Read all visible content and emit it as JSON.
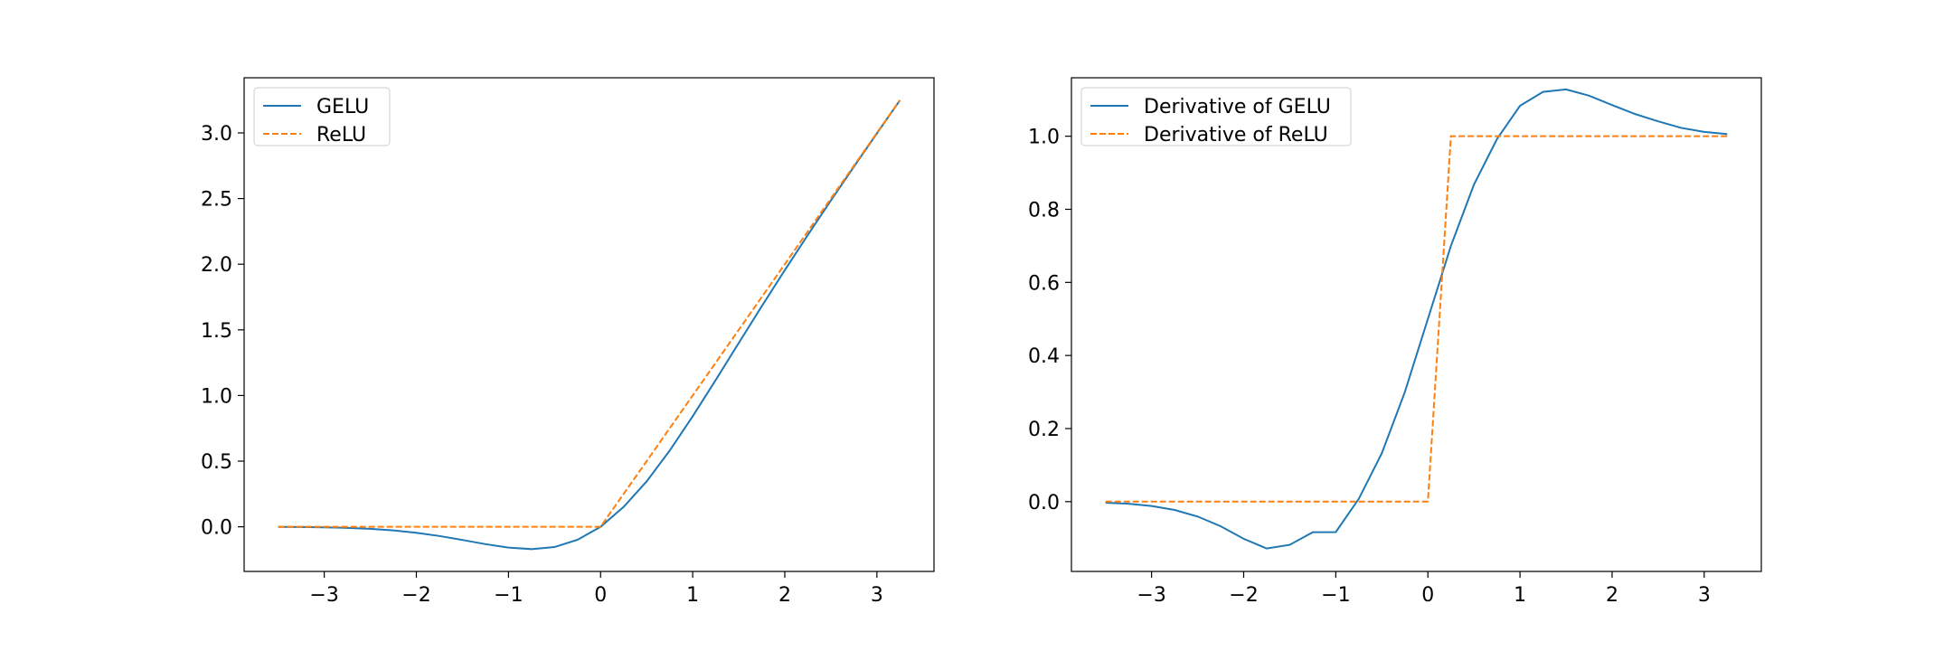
{
  "chart_data": [
    {
      "type": "line",
      "title": "",
      "xlabel": "",
      "ylabel": "",
      "xlim": [
        -3.87,
        3.62
      ],
      "ylim": [
        -0.34,
        3.42
      ],
      "xticks": [
        -3,
        -2,
        -1,
        0,
        1,
        2,
        3
      ],
      "yticks": [
        0.0,
        0.5,
        1.0,
        1.5,
        2.0,
        2.5,
        3.0
      ],
      "xtick_labels": [
        "−3",
        "−2",
        "−1",
        "0",
        "1",
        "2",
        "3"
      ],
      "ytick_labels": [
        "0.0",
        "0.5",
        "1.0",
        "1.5",
        "2.0",
        "2.5",
        "3.0"
      ],
      "grid": false,
      "legend_position": "top-left",
      "series": [
        {
          "name": "GELU",
          "color": "#1f77b4",
          "style": "solid",
          "x": [
            -3.5,
            -3.25,
            -3.0,
            -2.75,
            -2.5,
            -2.25,
            -2.0,
            -1.75,
            -1.5,
            -1.25,
            -1.0,
            -0.75,
            -0.5,
            -0.25,
            0.0,
            0.25,
            0.5,
            0.75,
            1.0,
            1.25,
            1.5,
            1.75,
            2.0,
            2.25,
            2.5,
            2.75,
            3.0,
            3.25
          ],
          "y": [
            -0.0008,
            -0.0019,
            -0.004,
            -0.0082,
            -0.0155,
            -0.0275,
            -0.0455,
            -0.0702,
            -0.1002,
            -0.1321,
            -0.1587,
            -0.17,
            -0.1543,
            -0.0988,
            0.0,
            0.1512,
            0.3457,
            0.58,
            0.8413,
            1.1179,
            1.3998,
            1.6798,
            1.9545,
            2.2225,
            2.4845,
            2.7418,
            2.996,
            3.2481
          ]
        },
        {
          "name": "ReLU",
          "color": "#ff7f0e",
          "style": "dashed",
          "x": [
            -3.5,
            0.0,
            3.25
          ],
          "y": [
            0.0,
            0.0,
            3.25
          ]
        }
      ]
    },
    {
      "type": "line",
      "title": "",
      "xlabel": "",
      "ylabel": "",
      "xlim": [
        -3.87,
        3.62
      ],
      "ylim": [
        -0.191,
        1.16
      ],
      "xticks": [
        -3,
        -2,
        -1,
        0,
        1,
        2,
        3
      ],
      "yticks": [
        0.0,
        0.2,
        0.4,
        0.6,
        0.8,
        1.0
      ],
      "xtick_labels": [
        "−3",
        "−2",
        "−1",
        "0",
        "1",
        "2",
        "3"
      ],
      "ytick_labels": [
        "0.0",
        "0.2",
        "0.4",
        "0.6",
        "0.8",
        "1.0"
      ],
      "grid": false,
      "legend_position": "top-left",
      "series": [
        {
          "name": "Derivative of GELU",
          "color": "#1f77b4",
          "style": "solid",
          "x": [
            -3.5,
            -3.25,
            -3.0,
            -2.75,
            -2.5,
            -2.25,
            -2.0,
            -1.75,
            -1.5,
            -1.25,
            -1.0,
            -0.75,
            -0.5,
            -0.25,
            0.0,
            0.25,
            0.5,
            0.75,
            1.0,
            1.25,
            1.5,
            1.75,
            2.0,
            2.25,
            2.5,
            2.75,
            3.0,
            3.25
          ],
          "y": [
            -0.0028,
            -0.0058,
            -0.0119,
            -0.0228,
            -0.0407,
            -0.0672,
            -0.1016,
            -0.1282,
            -0.1182,
            -0.0838,
            -0.0833,
            0.0078,
            0.1325,
            0.3,
            0.5,
            0.7,
            0.8675,
            0.9922,
            1.0833,
            1.1213,
            1.1282,
            1.111,
            1.0852,
            1.0607,
            1.0407,
            1.0228,
            1.0119,
            1.0058
          ]
        },
        {
          "name": "Derivative of ReLU",
          "color": "#ff7f0e",
          "style": "dashed",
          "x": [
            -3.5,
            0.0,
            0.25,
            3.25
          ],
          "y": [
            0.0,
            0.0,
            1.0,
            1.0
          ]
        }
      ]
    }
  ]
}
